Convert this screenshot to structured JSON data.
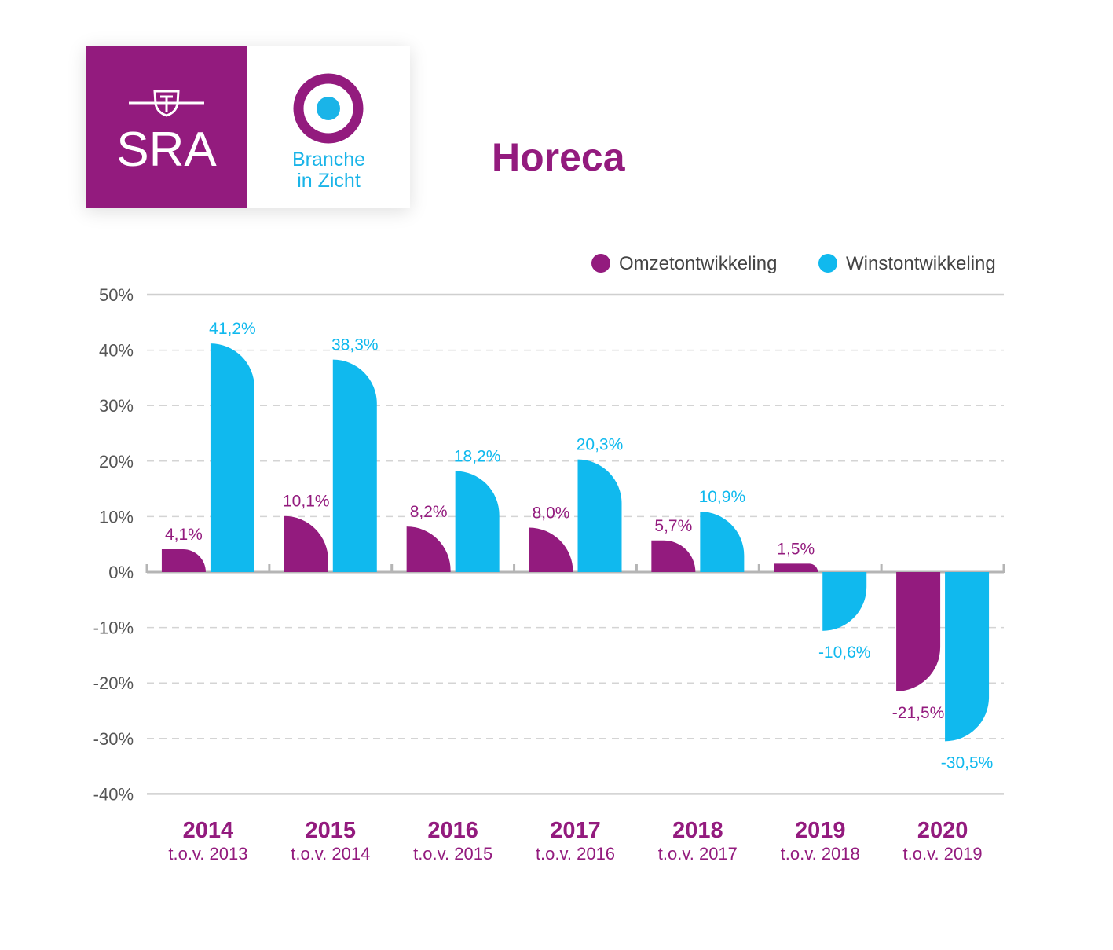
{
  "header": {
    "logo": {
      "sra_text": "SRA",
      "biz_line1": "Branche",
      "biz_line2": "in Zicht"
    },
    "title": "Horeca"
  },
  "colors": {
    "omzet": "#931b7e",
    "winst": "#10b9ee",
    "brand": "#931b7e",
    "grid": "#d4d4d4",
    "axis": "#bdbdbd"
  },
  "chart_data": {
    "type": "bar",
    "title": "Horeca",
    "xlabel": "",
    "ylabel": "",
    "ylim": [
      -40,
      50
    ],
    "yticks": [
      50,
      40,
      30,
      20,
      10,
      0,
      -10,
      -20,
      -30,
      -40
    ],
    "ytick_labels": [
      "50%",
      "40%",
      "30%",
      "20%",
      "10%",
      "0%",
      "-10%",
      "-20%",
      "-30%",
      "-40%"
    ],
    "grid": true,
    "legend_position": "top-right",
    "categories": [
      {
        "year": "2014",
        "sub": "t.o.v. 2013"
      },
      {
        "year": "2015",
        "sub": "t.o.v. 2014"
      },
      {
        "year": "2016",
        "sub": "t.o.v. 2015"
      },
      {
        "year": "2017",
        "sub": "t.o.v. 2016"
      },
      {
        "year": "2018",
        "sub": "t.o.v. 2017"
      },
      {
        "year": "2019",
        "sub": "t.o.v. 2018"
      },
      {
        "year": "2020",
        "sub": "t.o.v. 2019"
      }
    ],
    "series": [
      {
        "name": "Omzetontwikkeling",
        "values": [
          4.1,
          10.1,
          8.2,
          8.0,
          5.7,
          1.5,
          -21.5
        ],
        "labels": [
          "4,1%",
          "10,1%",
          "8,2%",
          "8,0%",
          "5,7%",
          "1,5%",
          "-21,5%"
        ]
      },
      {
        "name": "Winstontwikkeling",
        "values": [
          41.2,
          38.3,
          18.2,
          20.3,
          10.9,
          -10.6,
          -30.5
        ],
        "labels": [
          "41,2%",
          "38,3%",
          "18,2%",
          "20,3%",
          "10,9%",
          "-10,6%",
          "-30,5%"
        ]
      }
    ]
  }
}
